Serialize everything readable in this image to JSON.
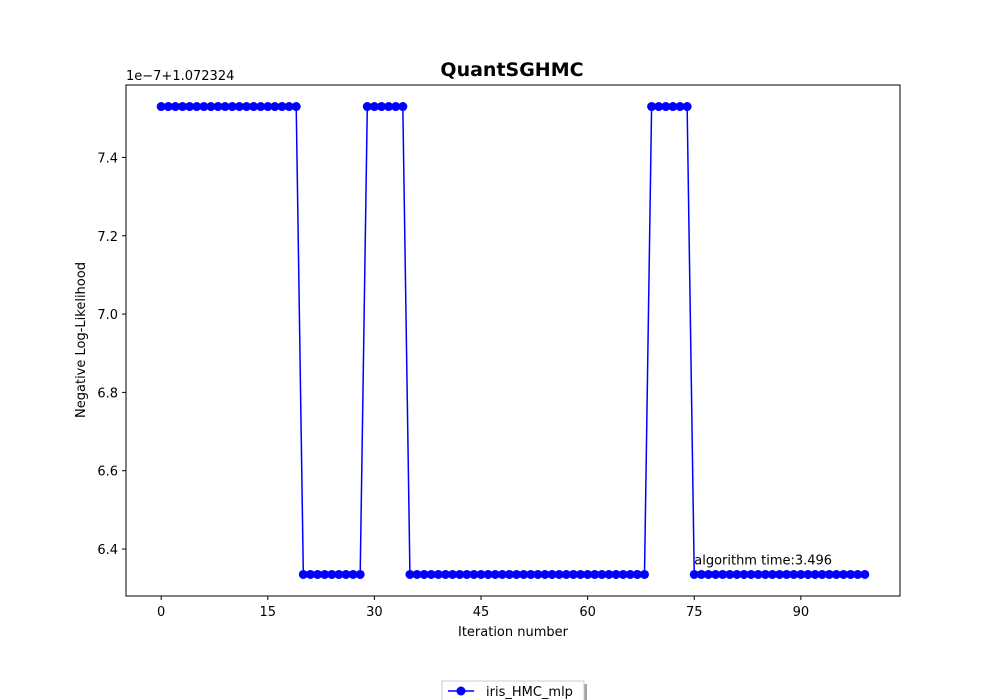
{
  "chart_data": {
    "type": "line",
    "title": "QuantSGHMC",
    "xlabel": "Iteration number",
    "ylabel": "Negative Log-Likelihood",
    "offset_text": "1e−7+1.072324",
    "annotation": "algorithm time:3.496",
    "annotation_at": [
      75,
      6.335
    ],
    "xlim": [
      -4.95,
      103.95
    ],
    "ylim": [
      6.28,
      7.585
    ],
    "xticks": [
      0,
      15,
      30,
      45,
      60,
      75,
      90
    ],
    "yticks": [
      6.4,
      6.6,
      6.8,
      7.0,
      7.2,
      7.4
    ],
    "ytick_labels": [
      "6.4",
      "6.6",
      "6.8",
      "7.0",
      "7.2",
      "7.4"
    ],
    "legend_position": "bottom-center",
    "grid": false,
    "series": [
      {
        "name": "iris_HMC_mlp",
        "color": "#0000ff",
        "marker": "circle",
        "x": [
          0,
          1,
          2,
          3,
          4,
          5,
          6,
          7,
          8,
          9,
          10,
          11,
          12,
          13,
          14,
          15,
          16,
          17,
          18,
          19,
          20,
          21,
          22,
          23,
          24,
          25,
          26,
          27,
          28,
          29,
          30,
          31,
          32,
          33,
          34,
          35,
          36,
          37,
          38,
          39,
          40,
          41,
          42,
          43,
          44,
          45,
          46,
          47,
          48,
          49,
          50,
          51,
          52,
          53,
          54,
          55,
          56,
          57,
          58,
          59,
          60,
          61,
          62,
          63,
          64,
          65,
          66,
          67,
          68,
          69,
          70,
          71,
          72,
          73,
          74,
          75,
          76,
          77,
          78,
          79,
          80,
          81,
          82,
          83,
          84,
          85,
          86,
          87,
          88,
          89,
          90,
          91,
          92,
          93,
          94,
          95,
          96,
          97,
          98,
          99
        ],
        "y": [
          7.53,
          7.53,
          7.53,
          7.53,
          7.53,
          7.53,
          7.53,
          7.53,
          7.53,
          7.53,
          7.53,
          7.53,
          7.53,
          7.53,
          7.53,
          7.53,
          7.53,
          7.53,
          7.53,
          7.53,
          6.335,
          6.335,
          6.335,
          6.335,
          6.335,
          6.335,
          6.335,
          6.335,
          6.335,
          7.53,
          7.53,
          7.53,
          7.53,
          7.53,
          7.53,
          6.335,
          6.335,
          6.335,
          6.335,
          6.335,
          6.335,
          6.335,
          6.335,
          6.335,
          6.335,
          6.335,
          6.335,
          6.335,
          6.335,
          6.335,
          6.335,
          6.335,
          6.335,
          6.335,
          6.335,
          6.335,
          6.335,
          6.335,
          6.335,
          6.335,
          6.335,
          6.335,
          6.335,
          6.335,
          6.335,
          6.335,
          6.335,
          6.335,
          6.335,
          7.53,
          7.53,
          7.53,
          7.53,
          7.53,
          7.53,
          6.335,
          6.335,
          6.335,
          6.335,
          6.335,
          6.335,
          6.335,
          6.335,
          6.335,
          6.335,
          6.335,
          6.335,
          6.335,
          6.335,
          6.335,
          6.335,
          6.335,
          6.335,
          6.335,
          6.335,
          6.335,
          6.335,
          6.335,
          6.335,
          6.335
        ]
      }
    ]
  }
}
